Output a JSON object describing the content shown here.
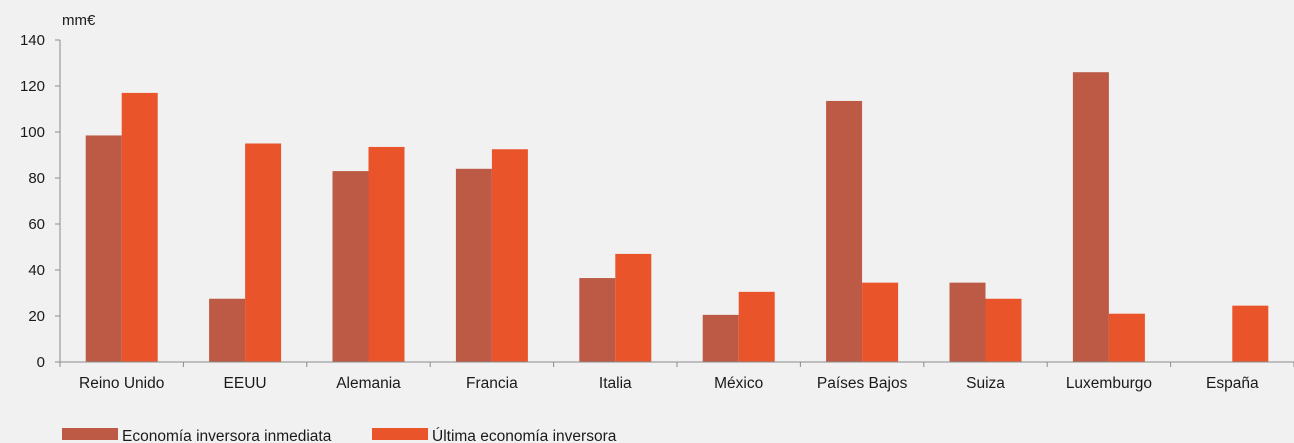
{
  "chart_data": {
    "type": "bar",
    "unit_label": "mm€",
    "categories": [
      "Reino Unido",
      "EEUU",
      "Alemania",
      "Francia",
      "Italia",
      "México",
      "Países Bajos",
      "Suiza",
      "Luxemburgo",
      "España"
    ],
    "series": [
      {
        "name": "Economía inversora inmediata",
        "color": "#bc5a45",
        "values": [
          98.5,
          27.5,
          83,
          84,
          36.5,
          20.5,
          113.5,
          34.5,
          126,
          0
        ]
      },
      {
        "name": "Última economía inversora",
        "color": "#e9542a",
        "values": [
          117,
          95,
          93.5,
          92.5,
          47,
          30.5,
          34.5,
          27.5,
          21,
          24.5
        ]
      }
    ],
    "ylim": [
      0,
      140
    ],
    "yticks": [
      0,
      20,
      40,
      60,
      80,
      100,
      120,
      140
    ],
    "grid": false,
    "legend_position": "bottom-left"
  }
}
